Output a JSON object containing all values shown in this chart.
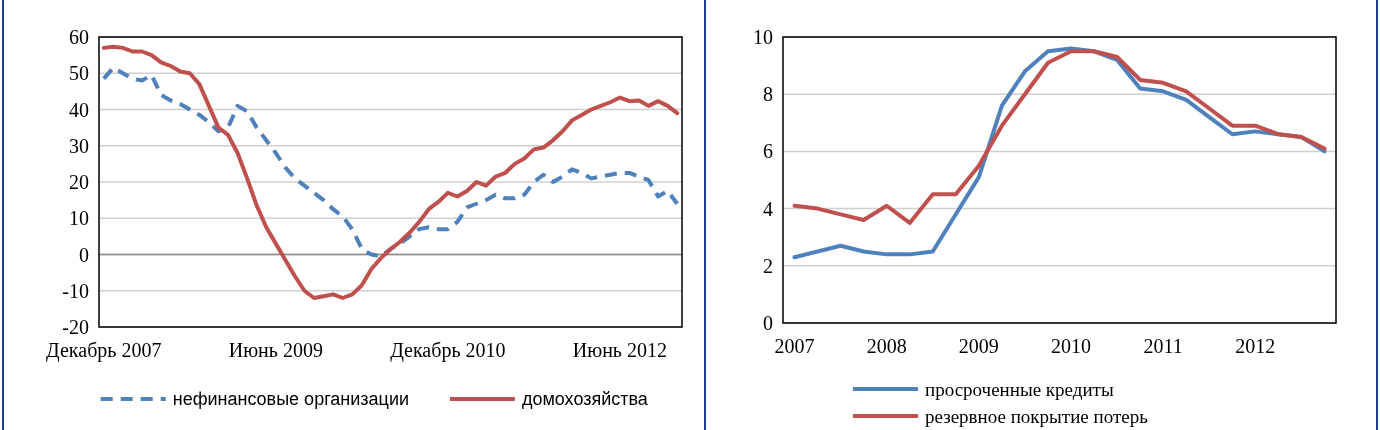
{
  "chart_data": [
    {
      "type": "line",
      "categories": [
        "Декабрь 2007",
        null,
        null,
        null,
        null,
        null,
        null,
        null,
        null,
        null,
        null,
        null,
        null,
        null,
        null,
        null,
        null,
        null,
        "Июнь 2009",
        null,
        null,
        null,
        null,
        null,
        null,
        null,
        null,
        null,
        null,
        null,
        null,
        null,
        null,
        null,
        null,
        null,
        "Декабрь 2010",
        null,
        null,
        null,
        null,
        null,
        null,
        null,
        null,
        null,
        null,
        null,
        null,
        null,
        null,
        null,
        null,
        null,
        "Июнь 2012",
        null,
        null,
        null,
        null,
        null,
        null
      ],
      "series": [
        {
          "name": "нефинансовые организации",
          "color": "#4f81bd",
          "line_style": "dashed",
          "values": [
            48.5,
            51.5,
            50,
            48.5,
            48,
            49.5,
            44,
            42.5,
            41.5,
            40,
            38.5,
            36.5,
            34,
            35,
            41,
            39.5,
            35,
            31.5,
            28,
            24,
            21,
            19,
            17,
            15,
            12.5,
            10.5,
            7,
            1.5,
            0,
            -0.5,
            1.5,
            3,
            5,
            7,
            7.5,
            7,
            7,
            9,
            13,
            14,
            15,
            16.5,
            15.5,
            15.5,
            16.5,
            20,
            22,
            20,
            21.5,
            23.5,
            22.5,
            21,
            21.5,
            22,
            22.5,
            22.5,
            21.5,
            20.5,
            16,
            17.5,
            14
          ]
        },
        {
          "name": "домохозяйства",
          "color": "#c0504d",
          "line_style": "solid",
          "values": [
            57,
            57.3,
            57,
            56,
            56,
            55,
            53,
            52,
            50.5,
            50,
            47,
            41,
            35,
            33,
            28,
            21,
            13.5,
            7.5,
            3,
            -1.5,
            -6,
            -10,
            -12,
            -11.5,
            -11,
            -12,
            -11,
            -8.5,
            -4,
            -1,
            1.5,
            3.5,
            6,
            9,
            12.5,
            14.5,
            17,
            16,
            17.5,
            20,
            19,
            21.5,
            22.5,
            25,
            26.5,
            29,
            29.5,
            31.5,
            34,
            37,
            38.5,
            40,
            41,
            42,
            43.3,
            42.3,
            42.5,
            41,
            42.3,
            41,
            39
          ]
        }
      ],
      "ylim": [
        -20,
        60
      ],
      "yticks": [
        -20,
        -10,
        0,
        10,
        20,
        30,
        40,
        50,
        60
      ],
      "grid": "y",
      "legend": "bottom"
    },
    {
      "type": "line",
      "categories": [
        "2007",
        null,
        null,
        null,
        "2008",
        null,
        null,
        null,
        "2009",
        null,
        null,
        null,
        "2010",
        null,
        null,
        null,
        "2011",
        null,
        null,
        null,
        "2012",
        null,
        null,
        null
      ],
      "series": [
        {
          "name": "просроченные кредиты",
          "color": "#4f81bd",
          "line_style": "solid",
          "values": [
            2.3,
            2.5,
            2.7,
            2.5,
            2.4,
            2.4,
            2.5,
            3.8,
            5.1,
            7.6,
            8.8,
            9.5,
            9.6,
            9.5,
            9.2,
            8.2,
            8.1,
            7.8,
            7.2,
            6.6,
            6.7,
            6.6,
            6.5,
            6.0
          ]
        },
        {
          "name": "резервное покрытие потерь",
          "color": "#c0504d",
          "line_style": "solid",
          "values": [
            4.1,
            4.0,
            3.8,
            3.6,
            4.1,
            3.5,
            4.5,
            4.5,
            5.5,
            6.9,
            8.0,
            9.1,
            9.5,
            9.5,
            9.3,
            8.5,
            8.4,
            8.1,
            7.5,
            6.9,
            6.9,
            6.6,
            6.5,
            6.1
          ]
        }
      ],
      "ylim": [
        0,
        10
      ],
      "yticks": [
        0,
        2,
        4,
        6,
        8,
        10
      ],
      "grid": "y",
      "legend": "bottom"
    }
  ]
}
